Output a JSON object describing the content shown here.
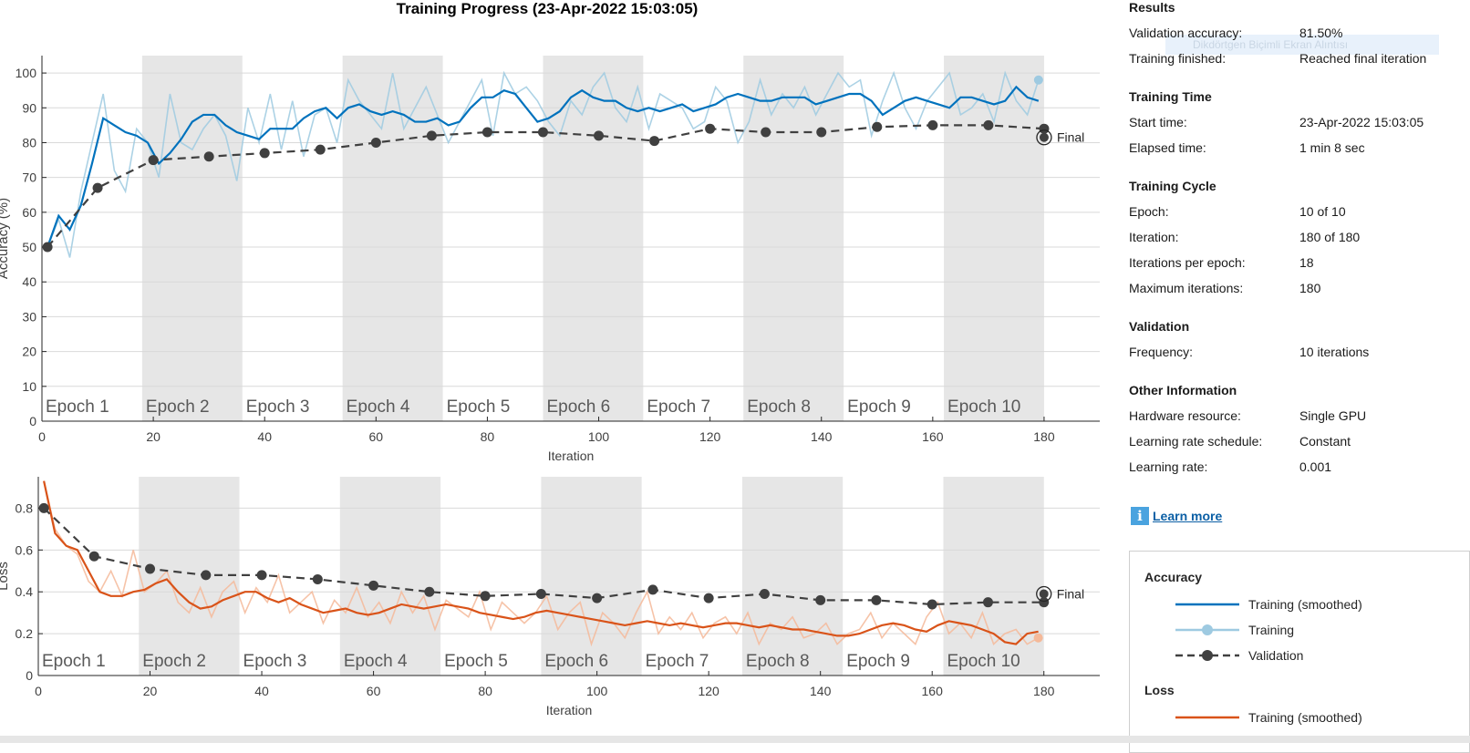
{
  "window": {
    "title": "Training Progress (23-Apr-2022 15:03:05)"
  },
  "colors": {
    "acc_smoothed": "#0072BD",
    "acc_raw": "#9ecae1",
    "loss_smoothed": "#D95319",
    "loss_raw": "#f5b999",
    "validation": "#404040",
    "epoch_shade": "#e6e6e6"
  },
  "chart_data": [
    {
      "type": "line",
      "name": "accuracy",
      "ylabel": "Accuracy (%)",
      "xlabel": "Iteration",
      "xlim": [
        0,
        190
      ],
      "ylim": [
        0,
        105
      ],
      "xticks": [
        0,
        20,
        40,
        60,
        80,
        100,
        120,
        140,
        160,
        180
      ],
      "yticks": [
        0,
        10,
        20,
        30,
        40,
        50,
        60,
        70,
        80,
        90,
        100
      ],
      "grid": true,
      "epochs": [
        "Epoch 1",
        "Epoch 2",
        "Epoch 3",
        "Epoch 4",
        "Epoch 5",
        "Epoch 6",
        "Epoch 7",
        "Epoch 8",
        "Epoch 9",
        "Epoch 10"
      ],
      "final_label": "Final",
      "series": [
        {
          "name": "Training",
          "x": [
            1,
            3,
            5,
            7,
            9,
            11,
            13,
            15,
            17,
            19,
            21,
            23,
            25,
            27,
            29,
            31,
            33,
            35,
            37,
            39,
            41,
            43,
            45,
            47,
            49,
            51,
            53,
            55,
            57,
            59,
            61,
            63,
            65,
            67,
            69,
            71,
            73,
            75,
            77,
            79,
            81,
            83,
            85,
            87,
            89,
            91,
            93,
            95,
            97,
            99,
            101,
            103,
            105,
            107,
            109,
            111,
            113,
            115,
            117,
            119,
            121,
            123,
            125,
            127,
            129,
            131,
            133,
            135,
            137,
            139,
            141,
            143,
            145,
            147,
            149,
            151,
            153,
            155,
            157,
            159,
            161,
            163,
            165,
            167,
            169,
            171,
            173,
            175,
            177,
            179
          ],
          "values": [
            50,
            58,
            47,
            66,
            80,
            94,
            72,
            66,
            84,
            80,
            70,
            94,
            80,
            78,
            84,
            88,
            82,
            69,
            90,
            80,
            94,
            78,
            92,
            76,
            88,
            90,
            80,
            98,
            92,
            88,
            84,
            100,
            84,
            90,
            96,
            88,
            80,
            86,
            92,
            98,
            82,
            100,
            94,
            96,
            92,
            86,
            82,
            92,
            88,
            96,
            100,
            90,
            86,
            96,
            84,
            94,
            92,
            90,
            84,
            86,
            96,
            92,
            80,
            86,
            98,
            88,
            94,
            90,
            96,
            88,
            94,
            100,
            96,
            98,
            82,
            92,
            100,
            90,
            84,
            92,
            96,
            100,
            88,
            90,
            94,
            86,
            100,
            92,
            88,
            98
          ]
        },
        {
          "name": "Training (smoothed)",
          "x": [
            1,
            3,
            5,
            7,
            9,
            11,
            13,
            15,
            17,
            19,
            21,
            23,
            25,
            27,
            29,
            31,
            33,
            35,
            37,
            39,
            41,
            43,
            45,
            47,
            49,
            51,
            53,
            55,
            57,
            59,
            61,
            63,
            65,
            67,
            69,
            71,
            73,
            75,
            77,
            79,
            81,
            83,
            85,
            87,
            89,
            91,
            93,
            95,
            97,
            99,
            101,
            103,
            105,
            107,
            109,
            111,
            113,
            115,
            117,
            119,
            121,
            123,
            125,
            127,
            129,
            131,
            133,
            135,
            137,
            139,
            141,
            143,
            145,
            147,
            149,
            151,
            153,
            155,
            157,
            159,
            161,
            163,
            165,
            167,
            169,
            171,
            173,
            175,
            177,
            179
          ],
          "values": [
            50,
            59,
            55,
            62,
            74,
            87,
            85,
            83,
            82,
            80,
            74,
            77,
            81,
            86,
            88,
            88,
            85,
            83,
            82,
            81,
            84,
            84,
            84,
            87,
            89,
            90,
            87,
            90,
            91,
            89,
            88,
            89,
            88,
            86,
            86,
            87,
            85,
            86,
            90,
            93,
            93,
            95,
            94,
            90,
            86,
            87,
            89,
            93,
            95,
            93,
            92,
            92,
            90,
            89,
            90,
            89,
            90,
            91,
            89,
            90,
            91,
            93,
            94,
            93,
            92,
            92,
            93,
            93,
            93,
            91,
            92,
            93,
            94,
            94,
            92,
            88,
            90,
            92,
            93,
            92,
            91,
            90,
            93,
            93,
            92,
            91,
            92,
            96,
            93,
            92
          ]
        },
        {
          "name": "Validation",
          "x": [
            1,
            10,
            20,
            30,
            40,
            50,
            60,
            70,
            80,
            90,
            100,
            110,
            120,
            130,
            140,
            150,
            160,
            170,
            180
          ],
          "values": [
            50,
            67,
            75,
            76,
            77,
            78,
            80,
            82,
            83,
            83,
            82,
            80.5,
            84,
            83,
            83,
            84.5,
            85,
            85,
            84
          ]
        }
      ],
      "final_value": 81.5
    },
    {
      "type": "line",
      "name": "loss",
      "ylabel": "Loss",
      "xlabel": "Iteration",
      "xlim": [
        0,
        190
      ],
      "ylim": [
        0,
        0.95
      ],
      "xticks": [
        0,
        20,
        40,
        60,
        80,
        100,
        120,
        140,
        160,
        180
      ],
      "yticks": [
        0,
        0.2,
        0.4,
        0.6,
        0.8
      ],
      "grid": true,
      "epochs": [
        "Epoch 1",
        "Epoch 2",
        "Epoch 3",
        "Epoch 4",
        "Epoch 5",
        "Epoch 6",
        "Epoch 7",
        "Epoch 8",
        "Epoch 9",
        "Epoch 10"
      ],
      "final_label": "Final",
      "series": [
        {
          "name": "Training",
          "x": [
            1,
            3,
            5,
            7,
            9,
            11,
            13,
            15,
            17,
            19,
            21,
            23,
            25,
            27,
            29,
            31,
            33,
            35,
            37,
            39,
            41,
            43,
            45,
            47,
            49,
            51,
            53,
            55,
            57,
            59,
            61,
            63,
            65,
            67,
            69,
            71,
            73,
            75,
            77,
            79,
            81,
            83,
            85,
            87,
            89,
            91,
            93,
            95,
            97,
            99,
            101,
            103,
            105,
            107,
            109,
            111,
            113,
            115,
            117,
            119,
            121,
            123,
            125,
            127,
            129,
            131,
            133,
            135,
            137,
            139,
            141,
            143,
            145,
            147,
            149,
            151,
            153,
            155,
            157,
            159,
            161,
            163,
            165,
            167,
            169,
            171,
            173,
            175,
            177,
            179
          ],
          "values": [
            0.93,
            0.7,
            0.62,
            0.58,
            0.45,
            0.4,
            0.5,
            0.38,
            0.6,
            0.4,
            0.44,
            0.5,
            0.35,
            0.3,
            0.42,
            0.28,
            0.4,
            0.45,
            0.3,
            0.42,
            0.35,
            0.48,
            0.3,
            0.35,
            0.4,
            0.25,
            0.36,
            0.3,
            0.42,
            0.28,
            0.35,
            0.25,
            0.4,
            0.3,
            0.38,
            0.22,
            0.36,
            0.32,
            0.28,
            0.4,
            0.22,
            0.35,
            0.3,
            0.25,
            0.3,
            0.38,
            0.22,
            0.3,
            0.35,
            0.15,
            0.3,
            0.25,
            0.18,
            0.3,
            0.4,
            0.2,
            0.28,
            0.22,
            0.3,
            0.18,
            0.25,
            0.28,
            0.2,
            0.3,
            0.15,
            0.25,
            0.22,
            0.28,
            0.18,
            0.2,
            0.25,
            0.15,
            0.2,
            0.22,
            0.3,
            0.18,
            0.25,
            0.2,
            0.15,
            0.28,
            0.35,
            0.2,
            0.25,
            0.18,
            0.3,
            0.15,
            0.2,
            0.22,
            0.15,
            0.18
          ]
        },
        {
          "name": "Training (smoothed)",
          "x": [
            1,
            3,
            5,
            7,
            9,
            11,
            13,
            15,
            17,
            19,
            21,
            23,
            25,
            27,
            29,
            31,
            33,
            35,
            37,
            39,
            41,
            43,
            45,
            47,
            49,
            51,
            53,
            55,
            57,
            59,
            61,
            63,
            65,
            67,
            69,
            71,
            73,
            75,
            77,
            79,
            81,
            83,
            85,
            87,
            89,
            91,
            93,
            95,
            97,
            99,
            101,
            103,
            105,
            107,
            109,
            111,
            113,
            115,
            117,
            119,
            121,
            123,
            125,
            127,
            129,
            131,
            133,
            135,
            137,
            139,
            141,
            143,
            145,
            147,
            149,
            151,
            153,
            155,
            157,
            159,
            161,
            163,
            165,
            167,
            169,
            171,
            173,
            175,
            177,
            179
          ],
          "values": [
            0.93,
            0.68,
            0.62,
            0.6,
            0.5,
            0.4,
            0.38,
            0.38,
            0.4,
            0.41,
            0.44,
            0.46,
            0.4,
            0.35,
            0.32,
            0.33,
            0.36,
            0.38,
            0.4,
            0.4,
            0.37,
            0.35,
            0.37,
            0.34,
            0.32,
            0.3,
            0.31,
            0.32,
            0.3,
            0.29,
            0.3,
            0.32,
            0.34,
            0.33,
            0.32,
            0.33,
            0.34,
            0.33,
            0.32,
            0.3,
            0.29,
            0.28,
            0.27,
            0.28,
            0.3,
            0.31,
            0.3,
            0.29,
            0.28,
            0.27,
            0.26,
            0.25,
            0.24,
            0.25,
            0.26,
            0.25,
            0.24,
            0.25,
            0.24,
            0.23,
            0.24,
            0.25,
            0.25,
            0.24,
            0.23,
            0.24,
            0.23,
            0.22,
            0.22,
            0.21,
            0.2,
            0.19,
            0.19,
            0.2,
            0.22,
            0.24,
            0.25,
            0.24,
            0.22,
            0.21,
            0.24,
            0.26,
            0.25,
            0.24,
            0.22,
            0.2,
            0.16,
            0.15,
            0.2,
            0.21
          ]
        },
        {
          "name": "Validation",
          "x": [
            1,
            10,
            20,
            30,
            40,
            50,
            60,
            70,
            80,
            90,
            100,
            110,
            120,
            130,
            140,
            150,
            160,
            170,
            180
          ],
          "values": [
            0.8,
            0.57,
            0.51,
            0.48,
            0.48,
            0.46,
            0.43,
            0.4,
            0.38,
            0.39,
            0.37,
            0.41,
            0.37,
            0.39,
            0.36,
            0.36,
            0.34,
            0.35,
            0.35
          ]
        }
      ],
      "final_value": 0.39
    }
  ],
  "results": {
    "title": "Results",
    "rows": [
      {
        "label": "Validation accuracy:",
        "value": "81.50%"
      },
      {
        "label": "Training finished:",
        "value": "Reached final iteration"
      }
    ]
  },
  "training_time": {
    "title": "Training Time",
    "rows": [
      {
        "label": "Start time:",
        "value": "23-Apr-2022 15:03:05"
      },
      {
        "label": "Elapsed time:",
        "value": "1 min 8 sec"
      }
    ]
  },
  "training_cycle": {
    "title": "Training Cycle",
    "rows": [
      {
        "label": "Epoch:",
        "value": "10 of 10"
      },
      {
        "label": "Iteration:",
        "value": "180 of 180"
      },
      {
        "label": "Iterations per epoch:",
        "value": "18"
      },
      {
        "label": "Maximum iterations:",
        "value": "180"
      }
    ]
  },
  "validation": {
    "title": "Validation",
    "rows": [
      {
        "label": "Frequency:",
        "value": "10 iterations"
      }
    ]
  },
  "other_information": {
    "title": "Other Information",
    "rows": [
      {
        "label": "Hardware resource:",
        "value": "Single GPU"
      },
      {
        "label": "Learning rate schedule:",
        "value": "Constant"
      },
      {
        "label": "Learning rate:",
        "value": "0.001"
      }
    ]
  },
  "learn_more": {
    "icon": "info-icon",
    "glyph": "i",
    "label": "Learn more"
  },
  "watermark": "Dikdörtgen Biçimli Ekran Alıntısı",
  "legend": {
    "accuracy_title": "Accuracy",
    "accuracy_items": [
      "Training (smoothed)",
      "Training",
      "Validation"
    ],
    "loss_title": "Loss",
    "loss_items": [
      "Training (smoothed)"
    ]
  }
}
